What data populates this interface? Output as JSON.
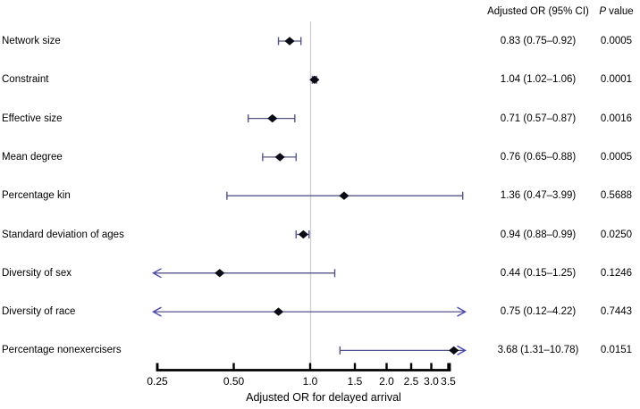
{
  "header": {
    "or_ci_label": "Adjusted OR (95% CI)",
    "p_label_italic": "P",
    "p_label_rest": " value"
  },
  "chart_data": {
    "type": "forest",
    "title": "",
    "xlabel": "Adjusted OR for delayed arrival",
    "x_scale": "log",
    "x_range": [
      0.25,
      3.5
    ],
    "reference_line_x": 1.0,
    "tick_values": [
      0.25,
      0.5,
      1.0,
      1.5,
      2.0,
      2.5,
      3.0,
      3.5
    ],
    "tick_labels": [
      "0.25",
      "0.50",
      "1.0",
      "1.5",
      "2.0",
      "2.5",
      "3.0",
      "3.5"
    ],
    "rows": [
      {
        "label": "Network size",
        "or": 0.83,
        "ci_low": 0.75,
        "ci_high": 0.92,
        "or_ci_text": "0.83 (0.75–0.92)",
        "p_value": "0.0005",
        "arrow_low": false,
        "arrow_high": false
      },
      {
        "label": "Constraint",
        "or": 1.04,
        "ci_low": 1.02,
        "ci_high": 1.06,
        "or_ci_text": "1.04 (1.02–1.06)",
        "p_value": "0.0001",
        "arrow_low": false,
        "arrow_high": false
      },
      {
        "label": "Effective size",
        "or": 0.71,
        "ci_low": 0.57,
        "ci_high": 0.87,
        "or_ci_text": "0.71 (0.57–0.87)",
        "p_value": "0.0016",
        "arrow_low": false,
        "arrow_high": false
      },
      {
        "label": "Mean degree",
        "or": 0.76,
        "ci_low": 0.65,
        "ci_high": 0.88,
        "or_ci_text": "0.76 (0.65–0.88)",
        "p_value": "0.0005",
        "arrow_low": false,
        "arrow_high": false
      },
      {
        "label": "Percentage kin",
        "or": 1.36,
        "ci_low": 0.47,
        "ci_high": 3.99,
        "or_ci_text": "1.36 (0.47–3.99)",
        "p_value": "0.5688",
        "arrow_low": false,
        "arrow_high": false
      },
      {
        "label": "Standard deviation of ages",
        "or": 0.94,
        "ci_low": 0.88,
        "ci_high": 0.99,
        "or_ci_text": "0.94 (0.88–0.99)",
        "p_value": "0.0250",
        "arrow_low": false,
        "arrow_high": false
      },
      {
        "label": "Diversity of sex",
        "or": 0.44,
        "ci_low": 0.15,
        "ci_high": 1.25,
        "or_ci_text": "0.44 (0.15–1.25)",
        "p_value": "0.1246",
        "arrow_low": true,
        "arrow_high": false
      },
      {
        "label": "Diversity of race",
        "or": 0.75,
        "ci_low": 0.12,
        "ci_high": 4.22,
        "or_ci_text": "0.75 (0.12–4.22)",
        "p_value": "0.7443",
        "arrow_low": true,
        "arrow_high": true
      },
      {
        "label": "Percentage nonexercisers",
        "or": 3.68,
        "ci_low": 1.31,
        "ci_high": 10.78,
        "or_ci_text": "3.68 (1.31–10.78)",
        "p_value": "0.0151",
        "arrow_low": false,
        "arrow_high": true
      }
    ]
  },
  "colors": {
    "ci_line": "#54548c",
    "arrow": "#4747b3",
    "marker": "#0b0b15",
    "reference_line": "#d2d2d2",
    "axis": "#000000",
    "text": "#000000"
  }
}
